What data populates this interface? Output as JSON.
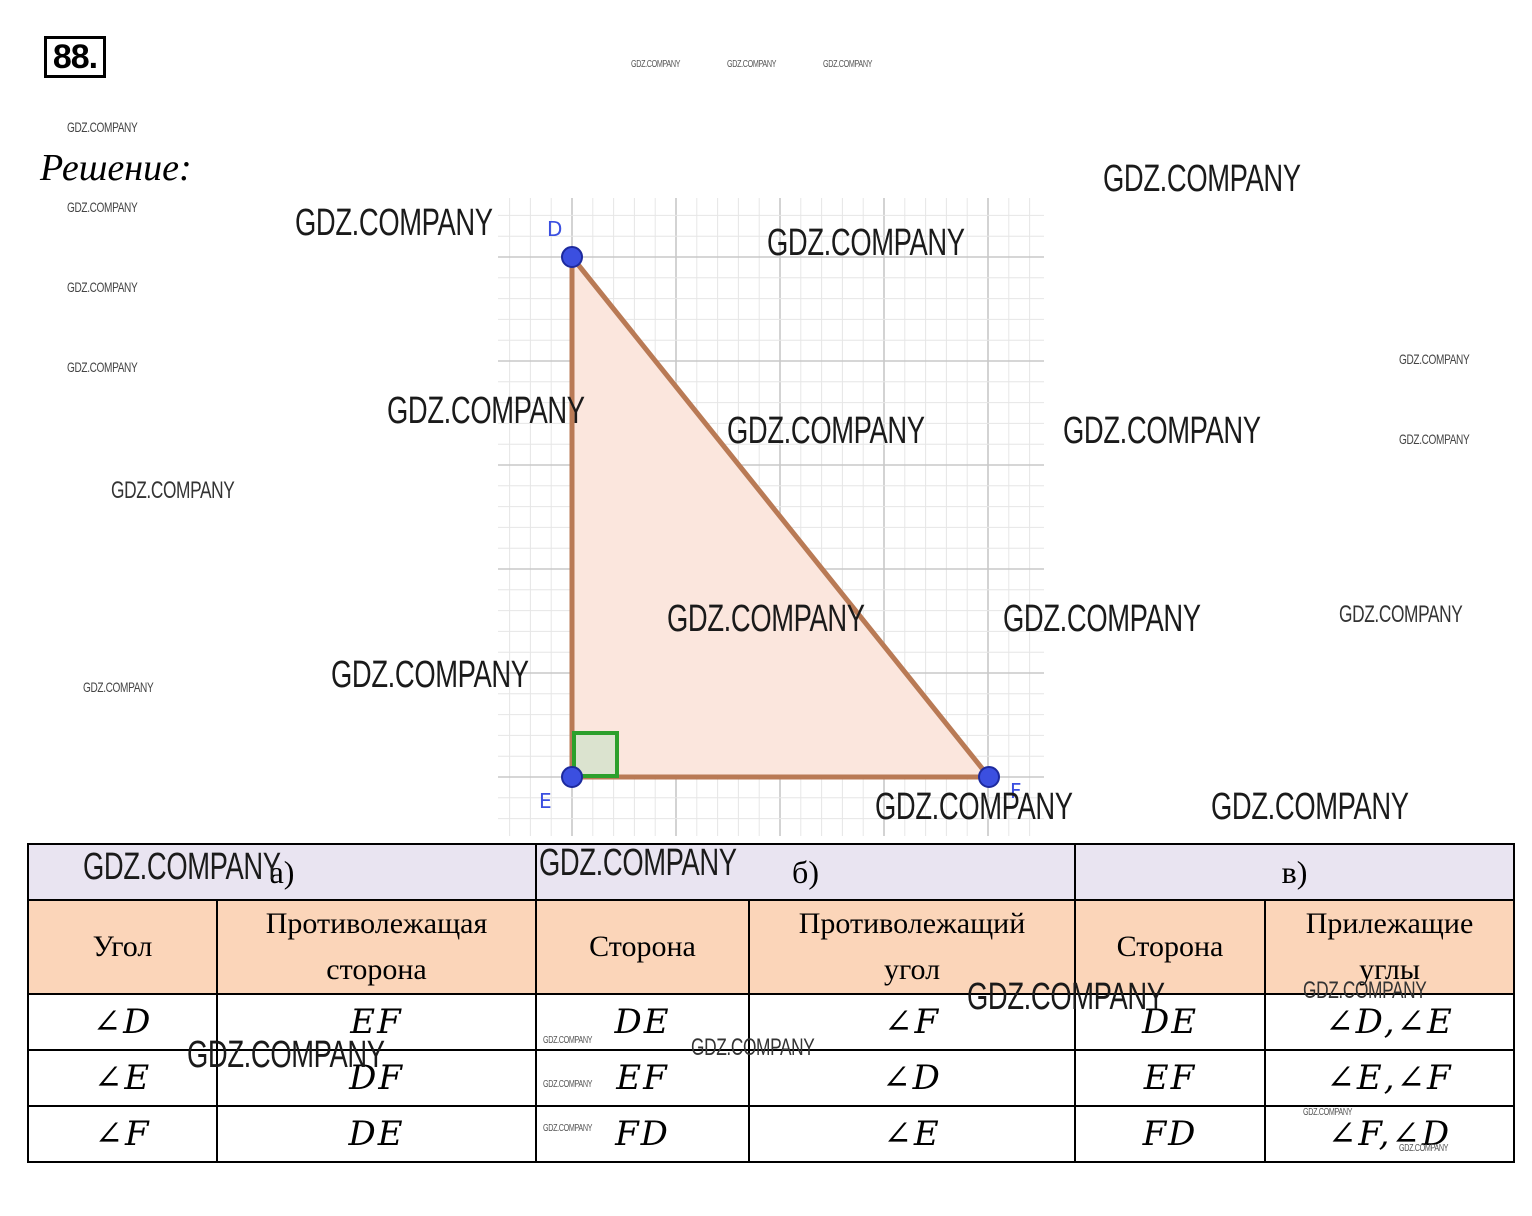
{
  "task_number": "88.",
  "solution_label": "Решение:",
  "figure": {
    "vertices": [
      {
        "label": "D"
      },
      {
        "label": "E"
      },
      {
        "label": "F"
      }
    ],
    "colors": {
      "triangle_fill": "#fbe6dd",
      "triangle_stroke": "#b97a55",
      "right_angle_marker": "#2ca02c",
      "vertex_point": "#3b4fe0",
      "vertex_label": "#3b4fe0",
      "grid_major": "#c8c8c8",
      "grid_minor": "#e6e6e6"
    }
  },
  "table": {
    "parts": [
      "а)",
      "б)",
      "в)"
    ],
    "headers": [
      "Угол",
      "Противолежащая сторона",
      "Сторона",
      "Противолежащий угол",
      "Сторона",
      "Прилежащие углы"
    ],
    "rows": [
      [
        "∠D",
        "EF",
        "DE",
        "∠F",
        "DE",
        "∠D,∠E"
      ],
      [
        "∠E",
        "DF",
        "EF",
        "∠D",
        "EF",
        "∠E,∠F"
      ],
      [
        "∠F",
        "DE",
        "FD",
        "∠E",
        "FD",
        "∠F,∠D"
      ]
    ],
    "colors": {
      "part_row": "#e9e4f1",
      "header_row": "#fbd5b9"
    }
  },
  "watermark_text": "GDZ.COMPANY"
}
